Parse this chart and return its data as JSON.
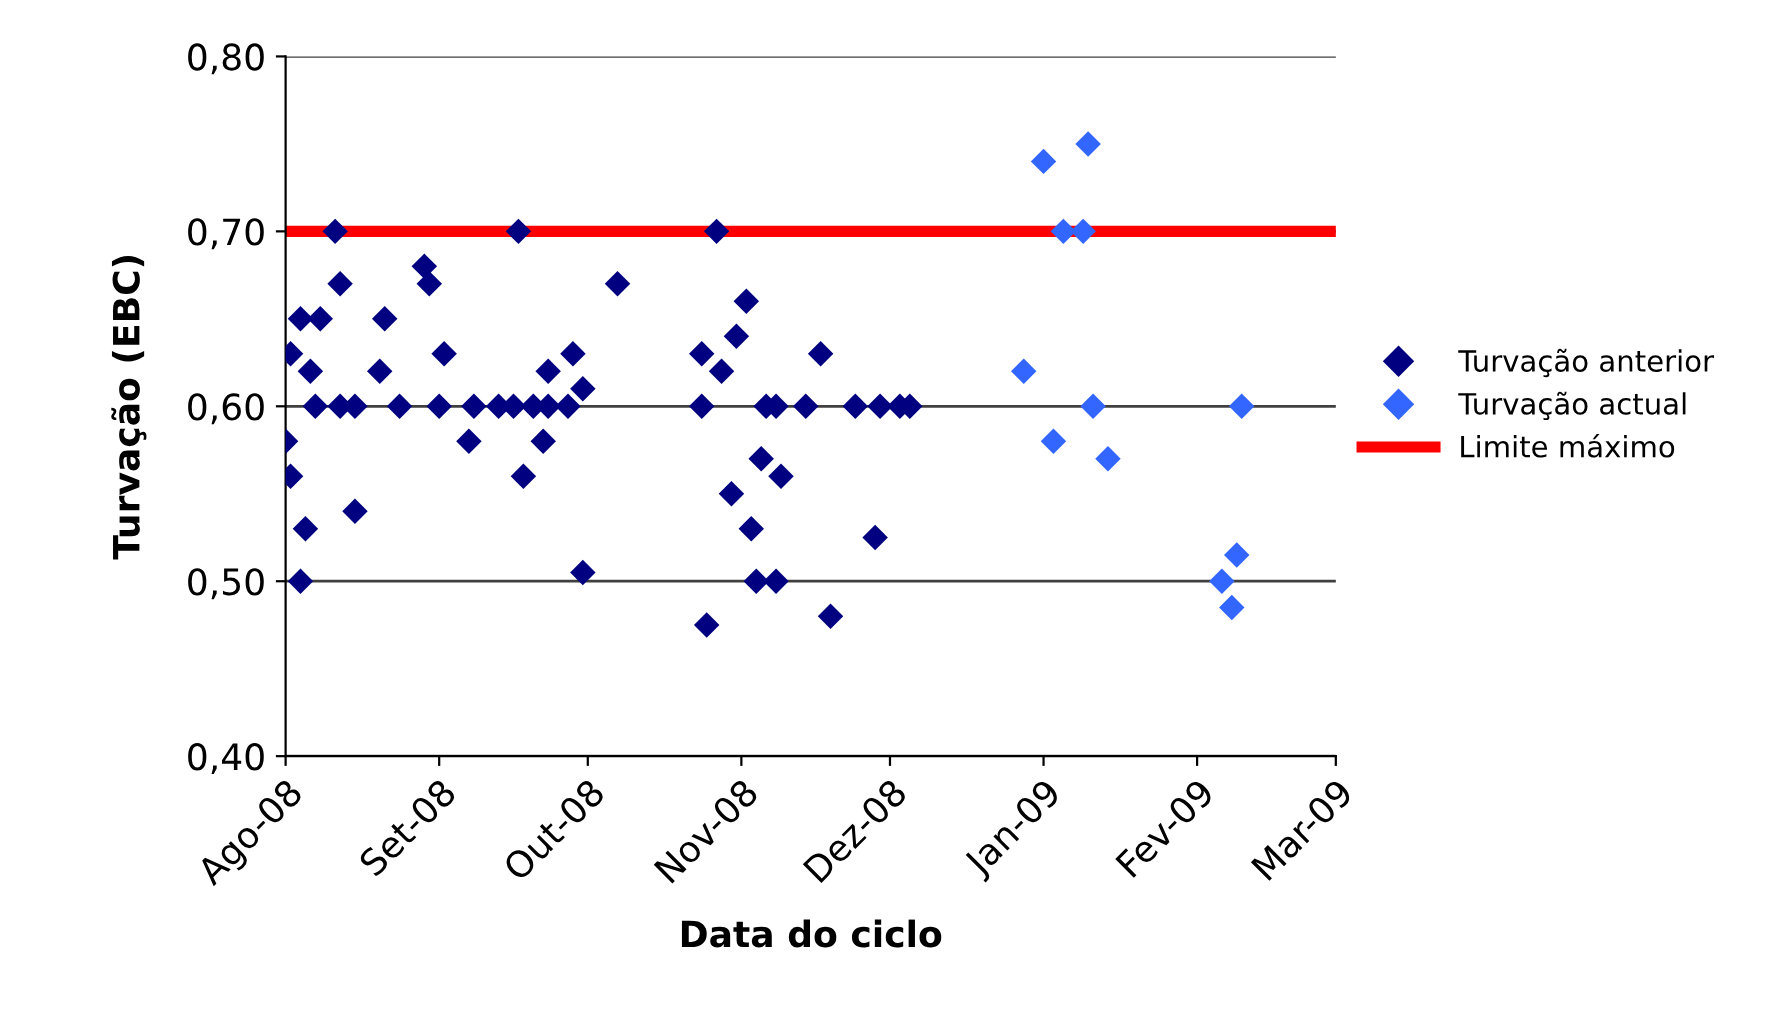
{
  "chart_data": {
    "type": "scatter",
    "xlabel": "Data do ciclo",
    "ylabel": "Turvação (EBC)",
    "xlim": [
      "2008-08-01",
      "2009-03-01"
    ],
    "xticks": [
      {
        "value": "2008-08-01",
        "label": "Ago-08"
      },
      {
        "value": "2008-09-01",
        "label": "Set-08"
      },
      {
        "value": "2008-10-01",
        "label": "Out-08"
      },
      {
        "value": "2008-11-01",
        "label": "Nov-08"
      },
      {
        "value": "2008-12-01",
        "label": "Dez-08"
      },
      {
        "value": "2009-01-01",
        "label": "Jan-09"
      },
      {
        "value": "2009-02-01",
        "label": "Fev-09"
      },
      {
        "value": "2009-03-01",
        "label": "Mar-09"
      }
    ],
    "ylim": [
      0.4,
      0.8
    ],
    "yticks": [
      {
        "value": 0.4,
        "label": "0,40"
      },
      {
        "value": 0.5,
        "label": "0,50"
      },
      {
        "value": 0.6,
        "label": "0,60"
      },
      {
        "value": 0.7,
        "label": "0,70"
      },
      {
        "value": 0.8,
        "label": "0,80"
      }
    ],
    "grid": "y",
    "legend": "right",
    "series": [
      {
        "name": "Turvação anterior",
        "color": "#000080",
        "marker": "diamond",
        "x": [
          "2008-08-01",
          "2008-08-02",
          "2008-08-02",
          "2008-08-04",
          "2008-08-06",
          "2008-08-05",
          "2008-08-04",
          "2008-08-08",
          "2008-08-07",
          "2008-08-11",
          "2008-08-12",
          "2008-08-12",
          "2008-08-15",
          "2008-08-15",
          "2008-08-20",
          "2008-08-21",
          "2008-08-24",
          "2008-08-29",
          "2008-08-30",
          "2008-09-01",
          "2008-09-02",
          "2008-09-07",
          "2008-09-08",
          "2008-09-13",
          "2008-09-16",
          "2008-09-17",
          "2008-09-18",
          "2008-09-20",
          "2008-09-22",
          "2008-09-23",
          "2008-09-23",
          "2008-09-27",
          "2008-09-28",
          "2008-09-30",
          "2008-09-30",
          "2008-10-07",
          "2008-10-24",
          "2008-10-24",
          "2008-10-25",
          "2008-10-27",
          "2008-10-28",
          "2008-10-30",
          "2008-10-31",
          "2008-11-02",
          "2008-11-03",
          "2008-11-04",
          "2008-11-05",
          "2008-11-06",
          "2008-11-08",
          "2008-11-08",
          "2008-11-09",
          "2008-11-14",
          "2008-11-17",
          "2008-11-19",
          "2008-11-24",
          "2008-11-28",
          "2008-11-29",
          "2008-12-03",
          "2008-12-05"
        ],
        "values": [
          0.58,
          0.56,
          0.63,
          0.65,
          0.62,
          0.53,
          0.5,
          0.65,
          0.6,
          0.7,
          0.6,
          0.67,
          0.6,
          0.54,
          0.62,
          0.65,
          0.6,
          0.68,
          0.67,
          0.6,
          0.63,
          0.58,
          0.6,
          0.6,
          0.6,
          0.7,
          0.56,
          0.6,
          0.58,
          0.6,
          0.62,
          0.6,
          0.63,
          0.61,
          0.505,
          0.67,
          0.63,
          0.6,
          0.475,
          0.7,
          0.62,
          0.55,
          0.64,
          0.66,
          0.53,
          0.5,
          0.57,
          0.6,
          0.5,
          0.6,
          0.56,
          0.6,
          0.63,
          0.48,
          0.6,
          0.525,
          0.6,
          0.6,
          0.6
        ]
      },
      {
        "name": "Turvação actual",
        "color": "#3366ff",
        "marker": "diamond",
        "x": [
          "2008-12-28",
          "2009-01-01",
          "2009-01-03",
          "2009-01-05",
          "2009-01-09",
          "2009-01-10",
          "2009-01-11",
          "2009-01-14",
          "2009-02-06",
          "2009-02-09",
          "2009-02-10",
          "2009-02-08"
        ],
        "values": [
          0.62,
          0.74,
          0.58,
          0.7,
          0.7,
          0.75,
          0.6,
          0.57,
          0.5,
          0.515,
          0.6,
          0.485
        ]
      },
      {
        "name": "Limite máximo",
        "color": "#ff0000",
        "type": "line",
        "marker": "none",
        "x": [
          "2008-08-01",
          "2009-03-01"
        ],
        "values": [
          0.7,
          0.7
        ]
      }
    ]
  }
}
